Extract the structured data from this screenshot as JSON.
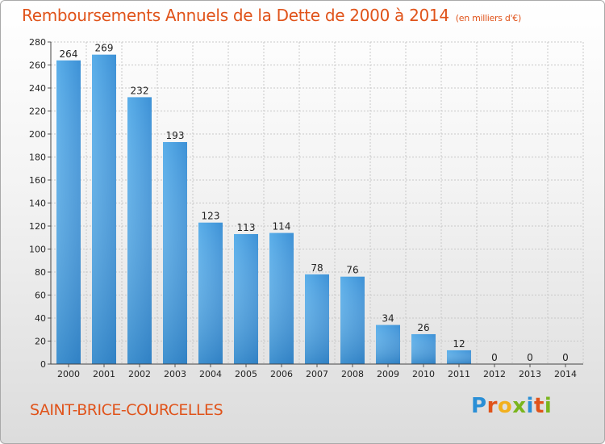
{
  "chart_data": {
    "type": "bar",
    "title": "Remboursements Annuels de la Dette de 2000 à 2014",
    "unit_label": "(en milliers d'€)",
    "categories": [
      "2000",
      "2001",
      "2002",
      "2003",
      "2004",
      "2005",
      "2006",
      "2007",
      "2008",
      "2009",
      "2010",
      "2011",
      "2012",
      "2013",
      "2014"
    ],
    "values": [
      264,
      269,
      232,
      193,
      123,
      113,
      114,
      78,
      76,
      34,
      26,
      12,
      0,
      0,
      0
    ],
    "xlabel": "",
    "ylabel": "",
    "ylim": [
      0,
      280
    ],
    "yticks": [
      0,
      20,
      40,
      60,
      80,
      100,
      120,
      140,
      160,
      180,
      200,
      220,
      240,
      260,
      280
    ],
    "grid": true,
    "legend": "none"
  },
  "footer": {
    "commune": "SAINT-BRICE-COURCELLES"
  },
  "brand": {
    "name": "Proxiti",
    "letters": [
      {
        "ch": "P",
        "color": "#2a8fd6"
      },
      {
        "ch": "r",
        "color": "#e0531a"
      },
      {
        "ch": "o",
        "color": "#f2b01e"
      },
      {
        "ch": "x",
        "color": "#7ab51d"
      },
      {
        "ch": "i",
        "color": "#2a8fd6"
      },
      {
        "ch": "t",
        "color": "#e0531a"
      },
      {
        "ch": "i",
        "color": "#7ab51d"
      }
    ]
  },
  "colors": {
    "accent": "#e0531a",
    "bar_top": "#66b4ec",
    "bar_bottom": "#2b7fc4",
    "grid": "#c8c8c8",
    "text": "#222222"
  }
}
